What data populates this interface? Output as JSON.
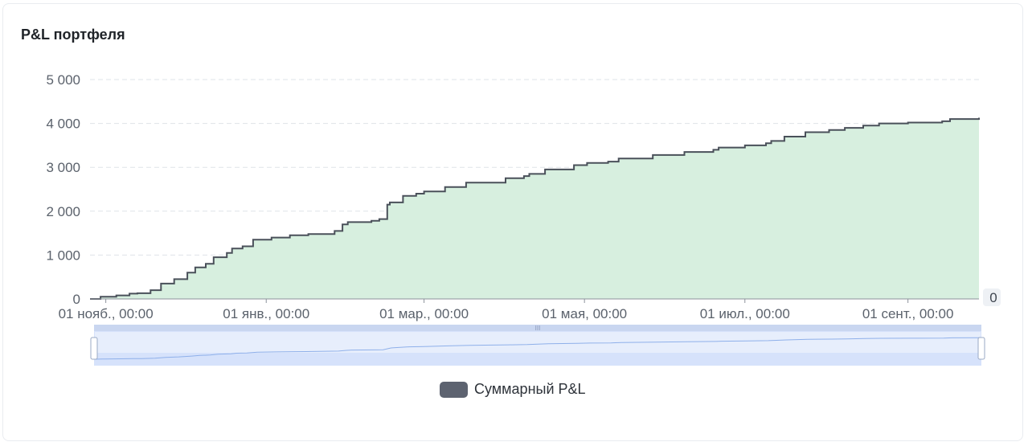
{
  "panel": {
    "title": "P&L портфеля"
  },
  "colors": {
    "line": "#4a505a",
    "area": "#d7efdf",
    "grid": "#dfe3e8",
    "zoom_fill": "#d6e2fb",
    "zoom_line": "#8fb0ea",
    "legend_swatch": "#5d6370"
  },
  "chart_data": {
    "type": "area",
    "x_axis_type": "time",
    "xlim": [
      "2023-10-26",
      "2024-09-28"
    ],
    "ylim": [
      0,
      5000
    ],
    "y_ticks": [
      0,
      1000,
      2000,
      3000,
      4000,
      5000
    ],
    "y_tick_labels": [
      "0",
      "1 000",
      "2 000",
      "3 000",
      "4 000",
      "5 000"
    ],
    "x_ticks": [
      "2023-11-01",
      "2024-01-01",
      "2024-03-01",
      "2024-05-01",
      "2024-07-01",
      "2024-09-01"
    ],
    "x_tick_labels": [
      "01 нояб., 00:00",
      "01 янв., 00:00",
      "01 мар., 00:00",
      "01 мая, 00:00",
      "01 июл., 00:00",
      "01 сент., 00:00"
    ],
    "right_axis_label": "0",
    "grid": true,
    "legend_position": "bottom",
    "series": [
      {
        "name": "Суммарный P&L",
        "x": [
          "2023-10-26",
          "2023-10-30",
          "2023-11-05",
          "2023-11-10",
          "2023-11-13",
          "2023-11-18",
          "2023-11-22",
          "2023-11-27",
          "2023-12-02",
          "2023-12-05",
          "2023-12-09",
          "2023-12-12",
          "2023-12-17",
          "2023-12-19",
          "2023-12-23",
          "2023-12-27",
          "2024-01-03",
          "2024-01-10",
          "2024-01-17",
          "2024-01-27",
          "2024-01-30",
          "2024-02-01",
          "2024-02-10",
          "2024-02-13",
          "2024-02-16",
          "2024-02-17",
          "2024-02-22",
          "2024-02-27",
          "2024-03-01",
          "2024-03-09",
          "2024-03-17",
          "2024-04-01",
          "2024-04-08",
          "2024-04-10",
          "2024-04-16",
          "2024-04-27",
          "2024-05-02",
          "2024-05-10",
          "2024-05-14",
          "2024-05-27",
          "2024-06-08",
          "2024-06-19",
          "2024-06-21",
          "2024-07-01",
          "2024-07-09",
          "2024-07-11",
          "2024-07-16",
          "2024-07-24",
          "2024-08-02",
          "2024-08-08",
          "2024-08-15",
          "2024-08-21",
          "2024-09-01",
          "2024-09-14",
          "2024-09-17",
          "2024-09-28"
        ],
        "values": [
          0,
          50,
          80,
          120,
          130,
          200,
          350,
          450,
          600,
          720,
          800,
          950,
          1050,
          1150,
          1200,
          1350,
          1400,
          1450,
          1480,
          1550,
          1700,
          1750,
          1780,
          1820,
          2150,
          2200,
          2350,
          2400,
          2450,
          2550,
          2650,
          2750,
          2800,
          2850,
          2950,
          3050,
          3100,
          3130,
          3200,
          3280,
          3350,
          3400,
          3450,
          3500,
          3550,
          3600,
          3700,
          3800,
          3850,
          3900,
          3950,
          4000,
          4020,
          4050,
          4100,
          4130
        ]
      }
    ]
  },
  "zoom": {
    "handle_grip": "III"
  }
}
